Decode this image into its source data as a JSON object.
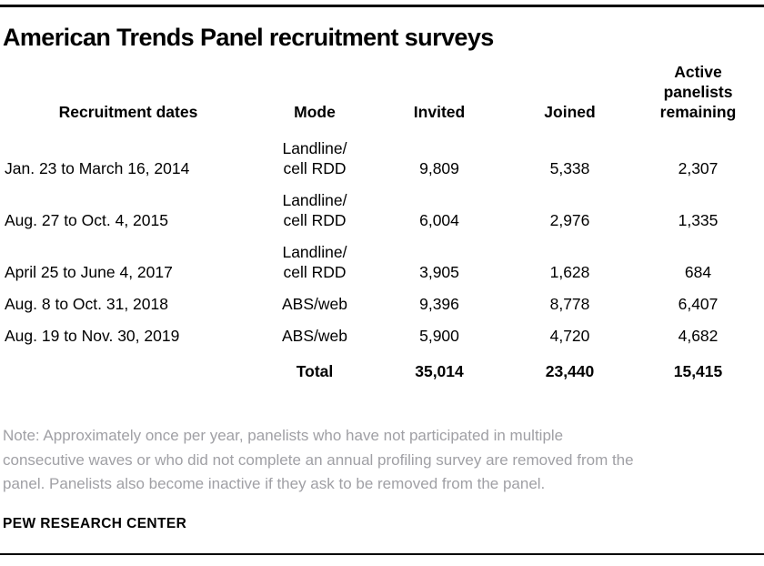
{
  "colors": {
    "text": "#000000",
    "note_text": "#a0a0a5",
    "rule": "#000000",
    "background": "#ffffff"
  },
  "title": "American Trends Panel recruitment surveys",
  "table": {
    "columns": [
      "Recruitment dates",
      "Mode",
      "Invited",
      "Joined",
      "Active\npanelists\nremaining"
    ],
    "rows": [
      {
        "dates": "Jan. 23 to March 16, 2014",
        "mode": "Landline/\ncell RDD",
        "invited": "9,809",
        "joined": "5,338",
        "active": "2,307"
      },
      {
        "dates": "Aug. 27 to Oct. 4, 2015",
        "mode": "Landline/\ncell RDD",
        "invited": "6,004",
        "joined": "2,976",
        "active": "1,335"
      },
      {
        "dates": "April 25 to June 4, 2017",
        "mode": "Landline/\ncell RDD",
        "invited": "3,905",
        "joined": "1,628",
        "active": "684"
      },
      {
        "dates": "Aug. 8 to Oct. 31, 2018",
        "mode": "ABS/web",
        "invited": "9,396",
        "joined": "8,778",
        "active": "6,407"
      },
      {
        "dates": "Aug. 19 to Nov. 30, 2019",
        "mode": "ABS/web",
        "invited": "5,900",
        "joined": "4,720",
        "active": "4,682"
      }
    ],
    "total_row": {
      "label": "Total",
      "invited": "35,014",
      "joined": "23,440",
      "active": "15,415"
    }
  },
  "note": "Note: Approximately once per year, panelists who have not participated in multiple\nconsecutive waves or who did not complete an annual profiling survey are removed from the\npanel. Panelists also become inactive if they ask to be removed from the panel.",
  "source": "PEW RESEARCH CENTER",
  "chart_data": {
    "type": "table",
    "title": "American Trends Panel recruitment surveys",
    "columns": [
      "Recruitment dates",
      "Mode",
      "Invited",
      "Joined",
      "Active panelists remaining"
    ],
    "rows": [
      [
        "Jan. 23 to March 16, 2014",
        "Landline/cell RDD",
        9809,
        5338,
        2307
      ],
      [
        "Aug. 27 to Oct. 4, 2015",
        "Landline/cell RDD",
        6004,
        2976,
        1335
      ],
      [
        "April 25 to June 4, 2017",
        "Landline/cell RDD",
        3905,
        1628,
        684
      ],
      [
        "Aug. 8 to Oct. 31, 2018",
        "ABS/web",
        9396,
        8778,
        6407
      ],
      [
        "Aug. 19 to Nov. 30, 2019",
        "ABS/web",
        5900,
        4720,
        4682
      ]
    ],
    "total": {
      "label": "Total",
      "invited": 35014,
      "joined": 23440,
      "active_panelists_remaining": 15415
    },
    "note": "Note: Approximately once per year, panelists who have not participated in multiple consecutive waves or who did not complete an annual profiling survey are removed from the panel. Panelists also become inactive if they ask to be removed from the panel.",
    "source": "PEW RESEARCH CENTER"
  }
}
